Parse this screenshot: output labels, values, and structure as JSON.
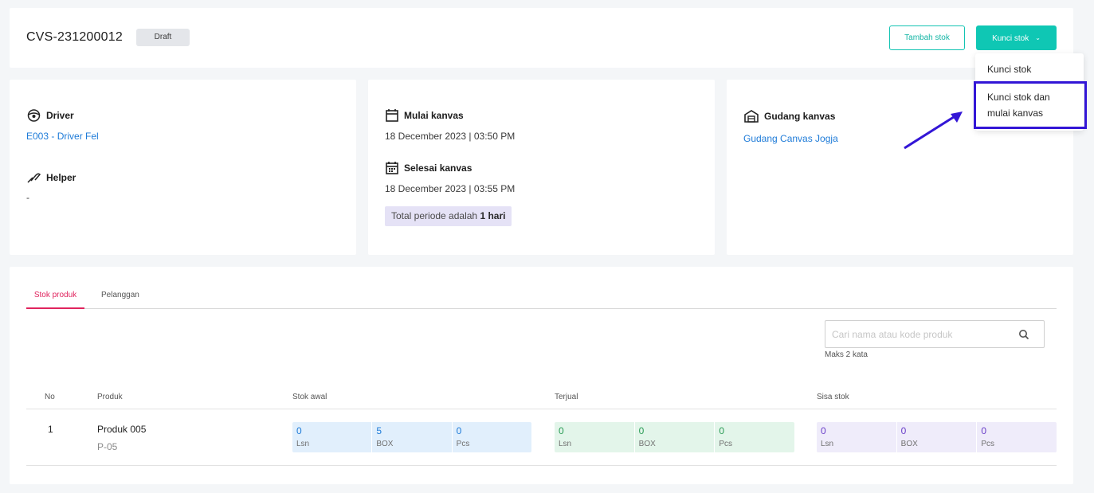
{
  "header": {
    "doc_id": "CVS-231200012",
    "status_badge": "Draft",
    "add_stock_label": "Tambah stok",
    "lock_stock_label": "Kunci stok"
  },
  "dropdown": {
    "items": [
      {
        "label": "Kunci stok"
      },
      {
        "label": "Kunci stok dan mulai kanvas"
      }
    ]
  },
  "driver_card": {
    "driver_title": "Driver",
    "driver_value": "E003 - Driver Fel",
    "helper_title": "Helper",
    "helper_value": "-"
  },
  "schedule_card": {
    "start_title": "Mulai kanvas",
    "start_value": "18 December 2023 | 03:50 PM",
    "end_title": "Selesai kanvas",
    "end_value": "18 December 2023 | 03:55 PM",
    "period_prefix": "Total periode adalah",
    "period_value": "1 hari"
  },
  "warehouse_card": {
    "title": "Gudang kanvas",
    "value": "Gudang Canvas Jogja"
  },
  "tabs": [
    {
      "label": "Stok produk",
      "active": true
    },
    {
      "label": "Pelanggan",
      "active": false
    }
  ],
  "search": {
    "placeholder": "Cari nama atau kode produk",
    "hint": "Maks 2 kata"
  },
  "table": {
    "columns": [
      "No",
      "Produk",
      "Stok awal",
      "Terjual",
      "Sisa stok"
    ],
    "rows": [
      {
        "no": "1",
        "product_name": "Produk 005",
        "product_code": "P-05",
        "stok_awal": [
          {
            "value": "0",
            "unit": "Lsn"
          },
          {
            "value": "5",
            "unit": "BOX"
          },
          {
            "value": "0",
            "unit": "Pcs"
          }
        ],
        "terjual": [
          {
            "value": "0",
            "unit": "Lsn"
          },
          {
            "value": "0",
            "unit": "BOX"
          },
          {
            "value": "0",
            "unit": "Pcs"
          }
        ],
        "sisa_stok": [
          {
            "value": "0",
            "unit": "Lsn"
          },
          {
            "value": "0",
            "unit": "BOX"
          },
          {
            "value": "0",
            "unit": "Pcs"
          }
        ]
      }
    ]
  },
  "colors": {
    "accent": "#0fc7b4",
    "tab_active": "#e0245e",
    "link": "#1e7bd8",
    "annotation": "#3316d6"
  }
}
